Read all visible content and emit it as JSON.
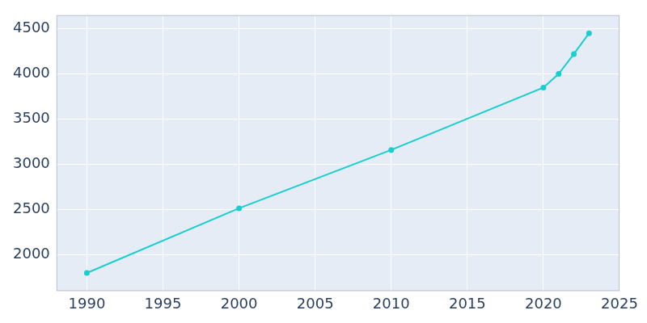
{
  "chart_data": {
    "type": "line",
    "x": [
      1990,
      2000,
      2010,
      2020,
      2021,
      2022,
      2023
    ],
    "values": [
      1800,
      2515,
      3160,
      3850,
      4000,
      4220,
      4450
    ],
    "color": "#17cfcf",
    "marker": "circle",
    "xlim": [
      1988,
      2025
    ],
    "xticks": [
      1990,
      1995,
      2000,
      2005,
      2010,
      2015,
      2020,
      2025
    ],
    "ylim": [
      1600,
      4650
    ],
    "yticks": [
      2000,
      2500,
      3000,
      3500,
      4000,
      4500
    ],
    "grid": true
  }
}
